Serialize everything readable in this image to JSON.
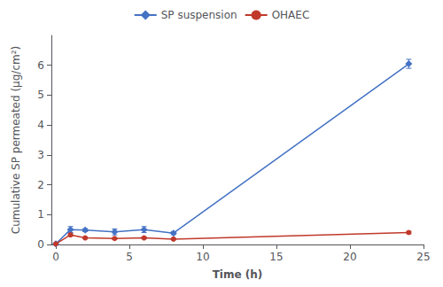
{
  "chart_data": {
    "type": "line",
    "xlabel": "Time (h)",
    "ylabel": "Cumulative SP permeated (μg/cm²)",
    "xlim": [
      -0.3,
      25
    ],
    "ylim": [
      0,
      7
    ],
    "xticks": [
      0,
      5,
      10,
      15,
      20,
      25
    ],
    "yticks": [
      0,
      1,
      2,
      3,
      4,
      5,
      6
    ],
    "grid": false,
    "legend": "top",
    "series": [
      {
        "name": "SP suspension",
        "color": "#4472C4",
        "marker": "diamond",
        "x": [
          0,
          1,
          2,
          4,
          6,
          8,
          24
        ],
        "values": [
          0.02,
          0.5,
          0.48,
          0.42,
          0.5,
          0.38,
          6.05
        ],
        "errors": [
          0.01,
          0.1,
          0.05,
          0.1,
          0.1,
          0.05,
          0.15
        ]
      },
      {
        "name": "OHAEC",
        "color": "#C0392B",
        "marker": "circle",
        "x": [
          0,
          1,
          2,
          4,
          6,
          8,
          24
        ],
        "values": [
          0.02,
          0.32,
          0.22,
          0.2,
          0.22,
          0.18,
          0.4
        ],
        "errors": [
          0.01,
          0.04,
          0.03,
          0.03,
          0.03,
          0.02,
          0.04
        ]
      }
    ]
  }
}
